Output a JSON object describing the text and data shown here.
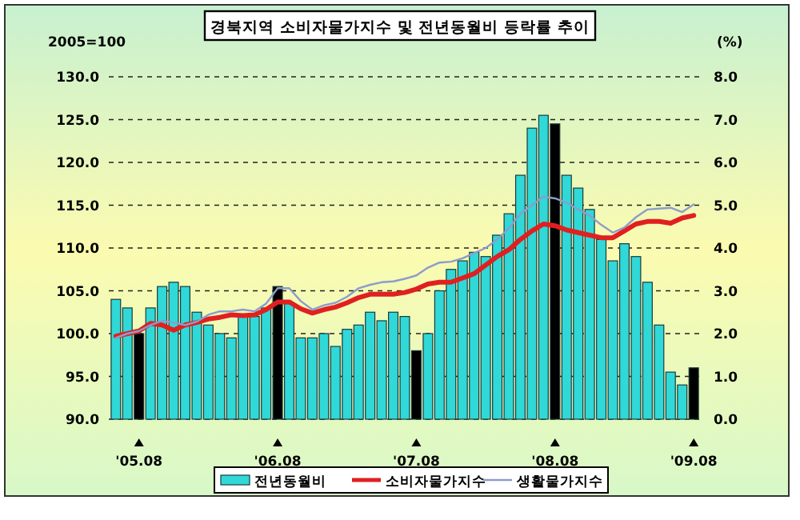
{
  "chart_data": {
    "type": "bar",
    "title": "경북지역 소비자물가지수 및 전년동월비 등락률 추이",
    "ylabel": "2005=100",
    "y2label": "(%)",
    "categories": [
      null,
      null,
      "'05.08",
      null,
      null,
      null,
      null,
      null,
      null,
      null,
      null,
      null,
      null,
      null,
      "'06.08",
      null,
      null,
      null,
      null,
      null,
      null,
      null,
      null,
      null,
      null,
      null,
      "'07.08",
      null,
      null,
      null,
      null,
      null,
      null,
      null,
      null,
      null,
      null,
      null,
      "'08.08",
      null,
      null,
      null,
      null,
      null,
      null,
      null,
      null,
      null,
      null,
      null,
      "'09.08"
    ],
    "ylim": [
      90,
      130
    ],
    "yticks": [
      {
        "value": 90,
        "label": "90.0"
      },
      {
        "value": 95,
        "label": "95.0"
      },
      {
        "value": 100,
        "label": "100.0"
      },
      {
        "value": 105,
        "label": "105.0"
      },
      {
        "value": 110,
        "label": "110.0"
      },
      {
        "value": 115,
        "label": "115.0"
      },
      {
        "value": 120,
        "label": "120.0"
      },
      {
        "value": 125,
        "label": "125.0"
      },
      {
        "value": 130,
        "label": "130.0"
      }
    ],
    "y2lim": [
      0,
      8
    ],
    "y2ticks": [
      {
        "value": 0,
        "label": "0.0"
      },
      {
        "value": 1,
        "label": "1.0"
      },
      {
        "value": 2,
        "label": "2.0"
      },
      {
        "value": 3,
        "label": "3.0"
      },
      {
        "value": 4,
        "label": "4.0"
      },
      {
        "value": 5,
        "label": "5.0"
      },
      {
        "value": 6,
        "label": "6.0"
      },
      {
        "value": 7,
        "label": "7.0"
      },
      {
        "value": 8,
        "label": "8.0"
      }
    ],
    "grid": "y",
    "legend": "bottom",
    "series": [
      {
        "name": "전년동월비",
        "axis": "y2",
        "color": "#30d8d8",
        "colors": [
          "#30d8d8",
          "#30d8d8",
          "#000000",
          "#30d8d8",
          "#30d8d8",
          "#30d8d8",
          "#30d8d8",
          "#30d8d8",
          "#30d8d8",
          "#30d8d8",
          "#30d8d8",
          "#30d8d8",
          "#30d8d8",
          "#30d8d8",
          "#000000",
          "#30d8d8",
          "#30d8d8",
          "#30d8d8",
          "#30d8d8",
          "#30d8d8",
          "#30d8d8",
          "#30d8d8",
          "#30d8d8",
          "#30d8d8",
          "#30d8d8",
          "#30d8d8",
          "#000000",
          "#30d8d8",
          "#30d8d8",
          "#30d8d8",
          "#30d8d8",
          "#30d8d8",
          "#30d8d8",
          "#30d8d8",
          "#30d8d8",
          "#30d8d8",
          "#30d8d8",
          "#30d8d8",
          "#000000",
          "#30d8d8",
          "#30d8d8",
          "#30d8d8",
          "#30d8d8",
          "#30d8d8",
          "#30d8d8",
          "#30d8d8",
          "#30d8d8",
          "#30d8d8",
          "#30d8d8",
          "#30d8d8",
          "#000000"
        ],
        "values": [
          2.8,
          2.6,
          2.0,
          2.6,
          3.1,
          3.2,
          3.1,
          2.5,
          2.2,
          2.0,
          1.9,
          2.4,
          2.4,
          2.6,
          3.1,
          2.7,
          1.9,
          1.9,
          2.0,
          1.7,
          2.1,
          2.2,
          2.5,
          2.3,
          2.5,
          2.4,
          1.6,
          2.0,
          3.0,
          3.5,
          3.7,
          3.9,
          3.8,
          4.3,
          4.8,
          5.7,
          6.8,
          7.1,
          6.9,
          5.7,
          5.4,
          4.9,
          4.2,
          3.7,
          4.1,
          3.8,
          3.2,
          2.2,
          1.1,
          0.8,
          1.2
        ]
      },
      {
        "name": "소비자물가지수",
        "type": "line",
        "color": "#e02020",
        "values": [
          99.7,
          100.0,
          100.3,
          101.2,
          101.0,
          100.4,
          101.0,
          101.3,
          101.7,
          101.9,
          102.2,
          102.1,
          102.2,
          102.8,
          103.7,
          103.7,
          102.9,
          102.4,
          102.8,
          103.1,
          103.6,
          104.2,
          104.6,
          104.6,
          104.6,
          104.8,
          105.2,
          105.8,
          106.0,
          106.0,
          106.5,
          107.0,
          108.0,
          109.0,
          109.8,
          111.0,
          112.0,
          112.8,
          112.6,
          112.1,
          111.8,
          111.5,
          111.2,
          111.2,
          112.0,
          112.8,
          113.1,
          113.1,
          112.9,
          113.5,
          113.8
        ]
      },
      {
        "name": "생활물가지수",
        "type": "line",
        "color": "#8c9ccc",
        "values": [
          99.5,
          100.0,
          100.3,
          101.0,
          101.5,
          101.3,
          101.0,
          101.4,
          102.2,
          102.6,
          102.6,
          102.8,
          102.6,
          103.5,
          105.3,
          105.3,
          103.8,
          102.8,
          103.3,
          103.6,
          104.3,
          105.3,
          105.7,
          106.0,
          106.1,
          106.4,
          106.8,
          107.7,
          108.3,
          108.4,
          108.8,
          109.4,
          110.0,
          111.0,
          112.3,
          114.0,
          115.0,
          116.0,
          115.8,
          115.3,
          114.5,
          113.8,
          112.7,
          111.8,
          112.4,
          113.6,
          114.5,
          114.6,
          114.7,
          114.2,
          115.1
        ]
      }
    ]
  }
}
